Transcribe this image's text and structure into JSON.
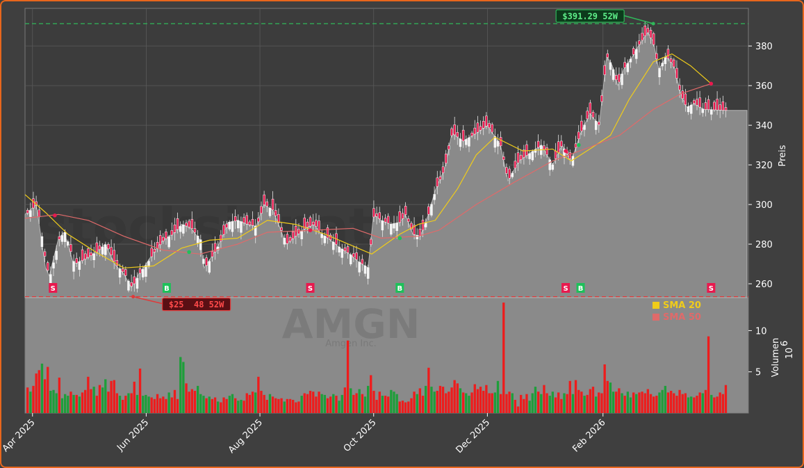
{
  "colors": {
    "page_bg": "#3f3f3f",
    "frame_border": "#e8661c",
    "plot_bg": "#3c3c3c",
    "area_fill": "#8a8a8a",
    "grid": "#5a5a5a",
    "up": "#1e9e3a",
    "down": "#ee1c1c",
    "sma20": "#f0cc1a",
    "sma50": "#e06a6a",
    "high_line": "#2fb85a",
    "low_line": "#e03a3a",
    "sell_marker": "#e8194e",
    "buy_marker": "#1ec15a"
  },
  "watermark": {
    "site": "stocksignature.trade",
    "ticker": "AMGN",
    "company": "Amgen Inc."
  },
  "chart_data": [
    {
      "type": "candlestick",
      "ylabel": "Preis",
      "ylim": [
        253,
        399
      ],
      "yticks": [
        260,
        280,
        300,
        320,
        340,
        360,
        380
      ],
      "x_range": [
        "2025-03-28",
        "2026-04-20"
      ],
      "x_ticks": [
        {
          "label": "Apr 2025",
          "date": "2025-04-01"
        },
        {
          "label": "Jun 2025",
          "date": "2025-06-01"
        },
        {
          "label": "Aug 2025",
          "date": "2025-08-01"
        },
        {
          "label": "Oct 2025",
          "date": "2025-10-01"
        },
        {
          "label": "Dec 2025",
          "date": "2025-12-01"
        },
        {
          "label": "Feb 2026",
          "date": "2026-02-01"
        }
      ],
      "grid": true,
      "close_path": [
        [
          "2025-03-28",
          295
        ],
        [
          "2025-04-03",
          300
        ],
        [
          "2025-04-08",
          268
        ],
        [
          "2025-04-10",
          264
        ],
        [
          "2025-04-15",
          283
        ],
        [
          "2025-04-18",
          286
        ],
        [
          "2025-04-23",
          270
        ],
        [
          "2025-04-28",
          272
        ],
        [
          "2025-05-05",
          276
        ],
        [
          "2025-05-10",
          280
        ],
        [
          "2025-05-15",
          270
        ],
        [
          "2025-05-20",
          265
        ],
        [
          "2025-05-24",
          258
        ],
        [
          "2025-05-28",
          265
        ],
        [
          "2025-06-01",
          270
        ],
        [
          "2025-06-05",
          276
        ],
        [
          "2025-06-10",
          282
        ],
        [
          "2025-06-15",
          285
        ],
        [
          "2025-06-20",
          290
        ],
        [
          "2025-06-25",
          288
        ],
        [
          "2025-06-30",
          282
        ],
        [
          "2025-07-02",
          268
        ],
        [
          "2025-07-05",
          272
        ],
        [
          "2025-07-10",
          280
        ],
        [
          "2025-07-15",
          291
        ],
        [
          "2025-07-20",
          292
        ],
        [
          "2025-07-25",
          290
        ],
        [
          "2025-07-30",
          289
        ],
        [
          "2025-08-03",
          300
        ],
        [
          "2025-08-08",
          297
        ],
        [
          "2025-08-11",
          290
        ],
        [
          "2025-08-15",
          280
        ],
        [
          "2025-08-20",
          284
        ],
        [
          "2025-08-25",
          288
        ],
        [
          "2025-08-30",
          290
        ],
        [
          "2025-09-03",
          285
        ],
        [
          "2025-09-08",
          282
        ],
        [
          "2025-09-13",
          278
        ],
        [
          "2025-09-18",
          275
        ],
        [
          "2025-09-23",
          271
        ],
        [
          "2025-09-28",
          268
        ],
        [
          "2025-10-01",
          295
        ],
        [
          "2025-10-05",
          292
        ],
        [
          "2025-10-10",
          290
        ],
        [
          "2025-10-15",
          291
        ],
        [
          "2025-10-18",
          295
        ],
        [
          "2025-10-22",
          285
        ],
        [
          "2025-10-26",
          284
        ],
        [
          "2025-10-30",
          294
        ],
        [
          "2025-11-03",
          307
        ],
        [
          "2025-11-08",
          318
        ],
        [
          "2025-11-12",
          336
        ],
        [
          "2025-11-18",
          332
        ],
        [
          "2025-11-25",
          336
        ],
        [
          "2025-12-01",
          340
        ],
        [
          "2025-12-08",
          330
        ],
        [
          "2025-12-12",
          312
        ],
        [
          "2025-12-18",
          322
        ],
        [
          "2025-12-24",
          326
        ],
        [
          "2025-12-30",
          330
        ],
        [
          "2026-01-05",
          320
        ],
        [
          "2026-01-10",
          330
        ],
        [
          "2026-01-15",
          322
        ],
        [
          "2026-01-20",
          336
        ],
        [
          "2026-01-25",
          346
        ],
        [
          "2026-01-30",
          340
        ],
        [
          "2026-02-03",
          375
        ],
        [
          "2026-02-06",
          370
        ],
        [
          "2026-02-09",
          360
        ],
        [
          "2026-02-12",
          368
        ],
        [
          "2026-02-17",
          375
        ],
        [
          "2026-02-20",
          380
        ],
        [
          "2026-02-25",
          387
        ],
        [
          "2026-02-28",
          382
        ],
        [
          "2026-03-03",
          368
        ],
        [
          "2026-03-07",
          375
        ],
        [
          "2026-03-11",
          370
        ],
        [
          "2026-03-15",
          355
        ],
        [
          "2026-03-18",
          349
        ],
        [
          "2026-03-22",
          351
        ],
        [
          "2026-03-27",
          348
        ],
        [
          "2026-04-20",
          347
        ]
      ],
      "series": [
        {
          "name": "SMA 20",
          "points": [
            [
              "2025-03-28",
              305
            ],
            [
              "2025-04-08",
              296
            ],
            [
              "2025-04-20",
              285
            ],
            [
              "2025-05-05",
              276
            ],
            [
              "2025-05-20",
              268
            ],
            [
              "2025-06-05",
              269
            ],
            [
              "2025-06-20",
              278
            ],
            [
              "2025-07-05",
              282
            ],
            [
              "2025-07-20",
              283
            ],
            [
              "2025-08-05",
              292
            ],
            [
              "2025-08-20",
              290
            ],
            [
              "2025-09-05",
              285
            ],
            [
              "2025-09-20",
              279
            ],
            [
              "2025-09-30",
              275
            ],
            [
              "2025-10-15",
              285
            ],
            [
              "2025-10-25",
              290
            ],
            [
              "2025-11-03",
              292
            ],
            [
              "2025-11-15",
              308
            ],
            [
              "2025-11-25",
              325
            ],
            [
              "2025-12-05",
              334
            ],
            [
              "2025-12-20",
              327
            ],
            [
              "2026-01-05",
              328
            ],
            [
              "2026-01-15",
              322
            ],
            [
              "2026-01-25",
              328
            ],
            [
              "2026-02-05",
              335
            ],
            [
              "2026-02-15",
              353
            ],
            [
              "2026-02-28",
              372
            ],
            [
              "2026-03-10",
              376
            ],
            [
              "2026-03-20",
              370
            ],
            [
              "2026-03-31",
              361
            ]
          ]
        },
        {
          "name": "SMA 50",
          "points": [
            [
              "2025-03-28",
              293
            ],
            [
              "2025-04-15",
              295
            ],
            [
              "2025-05-01",
              292
            ],
            [
              "2025-05-20",
              284
            ],
            [
              "2025-06-10",
              277
            ],
            [
              "2025-06-30",
              275
            ],
            [
              "2025-07-20",
              280
            ],
            [
              "2025-08-05",
              286
            ],
            [
              "2025-08-30",
              287
            ],
            [
              "2025-09-20",
              288
            ],
            [
              "2025-10-05",
              283
            ],
            [
              "2025-10-25",
              284
            ],
            [
              "2025-11-05",
              287
            ],
            [
              "2025-11-25",
              300
            ],
            [
              "2025-12-15",
              311
            ],
            [
              "2026-01-05",
              322
            ],
            [
              "2026-01-25",
              329
            ],
            [
              "2026-02-10",
              335
            ],
            [
              "2026-02-28",
              348
            ],
            [
              "2026-03-15",
              356
            ],
            [
              "2026-03-31",
              361
            ]
          ]
        }
      ],
      "annotations": [
        {
          "label": "$391.29 52W",
          "value": 391.29,
          "date": "2026-02-28",
          "kind": "high"
        },
        {
          "label": "$25  48 52W",
          "value": 253.48,
          "date": "2025-05-25",
          "kind": "low"
        }
      ],
      "signals": [
        {
          "label": "S",
          "date": "2025-04-12",
          "kind": "sell"
        },
        {
          "label": "B",
          "date": "2025-06-12",
          "kind": "buy"
        },
        {
          "label": "S",
          "date": "2025-08-28",
          "kind": "sell"
        },
        {
          "label": "B",
          "date": "2025-10-15",
          "kind": "buy"
        },
        {
          "label": "S",
          "date": "2026-01-12",
          "kind": "sell"
        },
        {
          "label": "B",
          "date": "2026-01-20",
          "kind": "buy"
        },
        {
          "label": "S",
          "date": "2026-03-31",
          "kind": "sell"
        }
      ],
      "crossover_points": [
        {
          "date": "2025-04-13",
          "value": 294.5,
          "kind": "sell"
        },
        {
          "date": "2025-06-24",
          "value": 276,
          "kind": "buy"
        },
        {
          "date": "2025-08-28",
          "value": 287,
          "kind": "sell"
        },
        {
          "date": "2025-10-15",
          "value": 283,
          "kind": "buy"
        },
        {
          "date": "2026-01-12",
          "value": 327,
          "kind": "sell"
        },
        {
          "date": "2026-01-19",
          "value": 330,
          "kind": "buy"
        },
        {
          "date": "2026-03-31",
          "value": 361,
          "kind": "sell"
        }
      ]
    },
    {
      "type": "bar",
      "ylabel": "Volumen",
      "unit_label": "10",
      "unit_exponent": "6",
      "ylim": [
        0,
        14
      ],
      "yticks": [
        5,
        10
      ],
      "legend": [
        {
          "label": "SMA 20",
          "color": "#f0cc1a"
        },
        {
          "label": "SMA 50",
          "color": "#e06a6a"
        }
      ],
      "legend_position": "top-right",
      "volumes": [
        3.1,
        2.6,
        3.3,
        4.8,
        5.2,
        6,
        4.1,
        5.6,
        2.7,
        2.8,
        2.4,
        4.3,
        1.8,
        2.3,
        2.1,
        2.6,
        2.2,
        2.2,
        2.0,
        2.5,
        2.8,
        4.4,
        2.9,
        3.2,
        2.1,
        3.4,
        3.1,
        4.1,
        2.6,
        3.9,
        4.0,
        2.4,
        2.1,
        1.6,
        2.1,
        2.4,
        2.4,
        3.8,
        2.2,
        5.4,
        2.1,
        2.2,
        2.0,
        1.9,
        1.7,
        2.3,
        1.8,
        2.0,
        1.7,
        2.5,
        1.9,
        2.8,
        1.7,
        6.8,
        6.2,
        3.6,
        2.6,
        2.9,
        2.7,
        3.3,
        2.3,
        2.1,
        1.8,
        2.0,
        1.7,
        1.9,
        1.4,
        1.3,
        1.9,
        1.7,
        2.1,
        2.3,
        1.8,
        1.5,
        1.6,
        1.5,
        2.4,
        2.2,
        2.6,
        2.5,
        4.4,
        2.7,
        2.2,
        1.6,
        2.3,
        2.0,
        1.8,
        1.7,
        1.8,
        1.4,
        1.7,
        1.7,
        1.6,
        1.3,
        1.4,
        2.1,
        2.4,
        2.3,
        2.7,
        2.6,
        2.0,
        2.6,
        2.3,
        2.2,
        1.8,
        2.0,
        2.3,
        2.1,
        1.5,
        2.2,
        3.1,
        8.8,
        3.0,
        2.2,
        2.4,
        2.9,
        2.3,
        2.0,
        3.3,
        4.6,
        2.7,
        1.6,
        2.6,
        2.1,
        2.1,
        2.0,
        2.8,
        2.6,
        2.3,
        1.4,
        1.5,
        1.3,
        1.4,
        1.8,
        2.6,
        2.3,
        3.0,
        2.1,
        3.3,
        5.5,
        3.2,
        2.6,
        2.7,
        3.3,
        3.2,
        2.4,
        2.6,
        3.1,
        4.0,
        3.6,
        3.0,
        2.5,
        2.4,
        2.1,
        2.5,
        3.5,
        2.9,
        3.2,
        2.7,
        3.4,
        2.4,
        2.4,
        2.5,
        3.9,
        2.3,
        13.4,
        2.3,
        2.6,
        2.4,
        1.6,
        0.8,
        2.2,
        1.7,
        2.3,
        1.5,
        2.4,
        3.2,
        2.6,
        2.3,
        3.4,
        2.4,
        2.1,
        2.6,
        1.9,
        2.5,
        1.7,
        2.4,
        2.3,
        3.9,
        2.3,
        4.0,
        2.8,
        2.6,
        2.1,
        2.2,
        2.9,
        3.2,
        2.0,
        2.5,
        2.4,
        5.9,
        3.9,
        3.7,
        2.6,
        2.6,
        3.0,
        2.4,
        2.1,
        2.6,
        1.9,
        2.5,
        2.3,
        2.5,
        2.6,
        2.4,
        2.9,
        2.3,
        2.0,
        2.1,
        2.5,
        2.8,
        3.3,
        2.5,
        2.7,
        2.4,
        2.1,
        2.8,
        2.3,
        2.4,
        1.9,
        2.0,
        1.9,
        2.1,
        2.5,
        2.4,
        2.8,
        9.3,
        2.2,
        1.9,
        2.0,
        2.5,
        2.3,
        3.4
      ],
      "directions": "dudddudduuuduuudududdddudduudddduddudduduuudddddduddduudddduuududduddduuduuddddudddduddddudddddudddddduudduduuddudduduuddddudduuuddddddudduduudddddddduduudddddddduudddduddddduuududduuddduddudddudddudddduudduduududdddddduuuddddddduudddudduddd"
    }
  ]
}
